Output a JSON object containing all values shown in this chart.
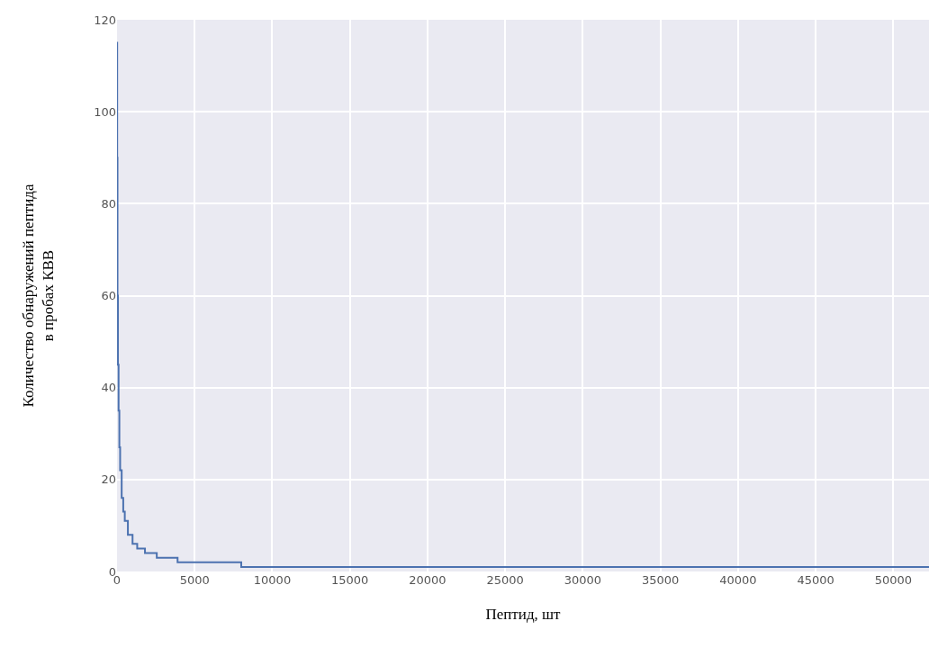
{
  "chart_data": {
    "type": "step",
    "xlabel": "Пептид, шт",
    "ylabel": "Количество обнаружений пептида\nв пробах КВВ",
    "x": [
      0,
      10,
      30,
      60,
      100,
      150,
      200,
      300,
      400,
      500,
      700,
      1000,
      1300,
      1800,
      2560,
      3900,
      8000,
      52300
    ],
    "series": [
      {
        "color": "#4c72b0",
        "values": [
          115,
          90,
          60,
          45,
          35,
          27,
          22,
          16,
          13,
          11,
          8,
          6,
          5,
          4,
          3,
          2,
          1,
          1
        ]
      }
    ],
    "xlim": [
      0,
      52300
    ],
    "ylim": [
      0,
      120
    ],
    "xticks": [
      0,
      5000,
      10000,
      15000,
      20000,
      25000,
      30000,
      35000,
      40000,
      45000,
      50000
    ],
    "yticks": [
      0,
      20,
      40,
      60,
      80,
      100,
      120
    ],
    "grid": true
  }
}
